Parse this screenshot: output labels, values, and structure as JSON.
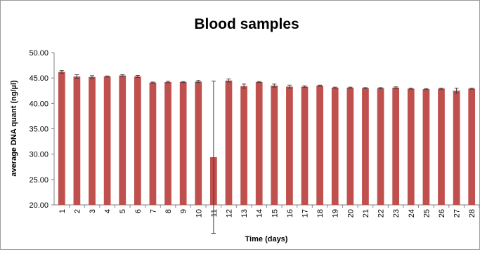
{
  "chart_data": {
    "type": "bar",
    "title": "Blood samples",
    "xlabel": "Time (days)",
    "ylabel": "average DNA quant  (ng/µl)",
    "ylim": [
      20,
      50
    ],
    "yticks": [
      "20.00",
      "25.00",
      "30.00",
      "35.00",
      "40.00",
      "45.00",
      "50.00"
    ],
    "categories": [
      "1",
      "2",
      "3",
      "4",
      "5",
      "6",
      "7",
      "8",
      "9",
      "10",
      "11",
      "12",
      "13",
      "14",
      "15",
      "16",
      "17",
      "18",
      "19",
      "20",
      "21",
      "22",
      "23",
      "24",
      "25",
      "26",
      "27",
      "28"
    ],
    "values": [
      46.2,
      45.3,
      45.2,
      45.3,
      45.5,
      45.3,
      44.1,
      44.2,
      44.2,
      44.3,
      29.4,
      44.5,
      43.4,
      44.2,
      43.5,
      43.3,
      43.3,
      43.5,
      43.1,
      43.1,
      43.0,
      43.0,
      43.1,
      42.9,
      42.8,
      42.9,
      42.5,
      42.9
    ],
    "errors": [
      0.25,
      0.35,
      0.25,
      0.1,
      0.15,
      0.2,
      0.1,
      0.15,
      0.1,
      0.2,
      15.0,
      0.3,
      0.4,
      0.1,
      0.3,
      0.3,
      0.15,
      0.1,
      0.1,
      0.1,
      0.1,
      0.1,
      0.15,
      0.1,
      0.1,
      0.1,
      0.5,
      0.1
    ],
    "bar_color": "#c0504d",
    "grid": false,
    "legend": "none"
  }
}
